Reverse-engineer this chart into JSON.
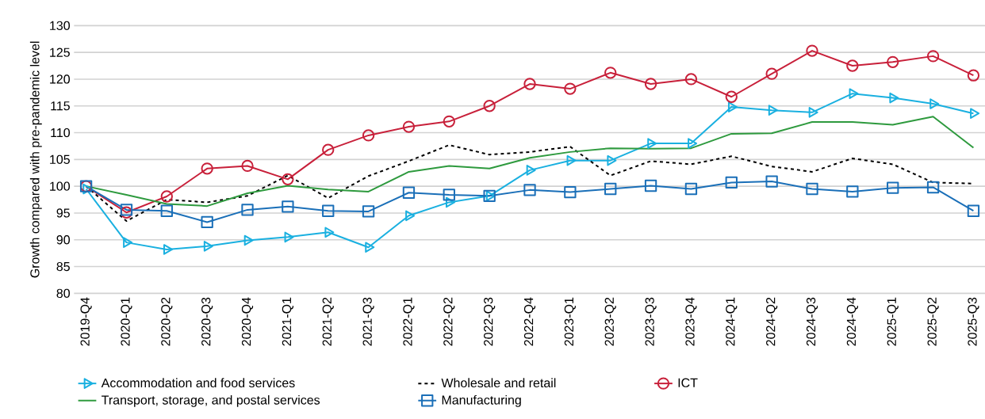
{
  "chart_data": {
    "type": "line",
    "ylabel": "Growth compared with pre-pandemic level",
    "categories": [
      "2019-Q4",
      "2020-Q1",
      "2020-Q2",
      "2020-Q3",
      "2020-Q4",
      "2021-Q1",
      "2021-Q2",
      "2021-Q3",
      "2022-Q1",
      "2022-Q2",
      "2022-Q3",
      "2022-Q4",
      "2023-Q1",
      "2023-Q2",
      "2023-Q3",
      "2023-Q4",
      "2024-Q1",
      "2024-Q2",
      "2024-Q3",
      "2024-Q4",
      "2025-Q1",
      "2025-Q2",
      "2025-Q3"
    ],
    "series": [
      {
        "name": "Accommodation and food services",
        "color": "#1ab0e0",
        "marker": "triangle",
        "line_style": "solid",
        "values": [
          99.5,
          89.5,
          88.2,
          88.8,
          89.9,
          90.5,
          91.4,
          88.6,
          94.5,
          97,
          98.2,
          103,
          104.8,
          104.8,
          108,
          108,
          114.8,
          114.2,
          113.8,
          117.3,
          116.5,
          115.4,
          113.6
        ]
      },
      {
        "name": "Wholesale and retail",
        "color": "#000000",
        "marker": "none",
        "line_style": "dashed",
        "values": [
          100,
          93.5,
          97.5,
          97,
          98.2,
          102,
          97.8,
          101.9,
          104.7,
          107.7,
          105.9,
          106.4,
          107.4,
          102,
          104.7,
          104.1,
          105.6,
          103.7,
          102.7,
          105.2,
          104.1,
          100.7,
          100.5
        ]
      },
      {
        "name": "ICT",
        "color": "#c8203a",
        "marker": "circle",
        "line_style": "solid",
        "values": [
          100,
          95.1,
          98.1,
          103.3,
          103.8,
          101.3,
          106.8,
          109.5,
          111.1,
          112.1,
          115,
          119.1,
          118.2,
          121.2,
          119.1,
          120,
          116.7,
          121,
          125.3,
          122.5,
          123.2,
          124.3,
          120.7
        ]
      },
      {
        "name": "Transport, storage, and postal services",
        "color": "#2e9a3e",
        "marker": "none",
        "line_style": "solid",
        "values": [
          100,
          98.4,
          96.7,
          96.3,
          98.7,
          100.1,
          99.4,
          99,
          102.7,
          103.8,
          103.3,
          105.3,
          106.4,
          107.1,
          107,
          107.1,
          109.8,
          109.9,
          112,
          112,
          111.5,
          113,
          107.2
        ]
      },
      {
        "name": "Manufacturing",
        "color": "#1a6fb8",
        "marker": "square",
        "line_style": "solid",
        "values": [
          100,
          95.6,
          95.4,
          93.3,
          95.6,
          96.2,
          95.4,
          95.3,
          98.8,
          98.4,
          98.2,
          99.3,
          98.9,
          99.5,
          100.1,
          99.5,
          100.7,
          100.9,
          99.5,
          99,
          99.7,
          99.8,
          95.4
        ]
      }
    ],
    "ylim": [
      80,
      130
    ],
    "yticks": [
      80,
      85,
      90,
      95,
      100,
      105,
      110,
      115,
      120,
      125,
      130
    ],
    "grid": "y",
    "legend": "bottom"
  }
}
